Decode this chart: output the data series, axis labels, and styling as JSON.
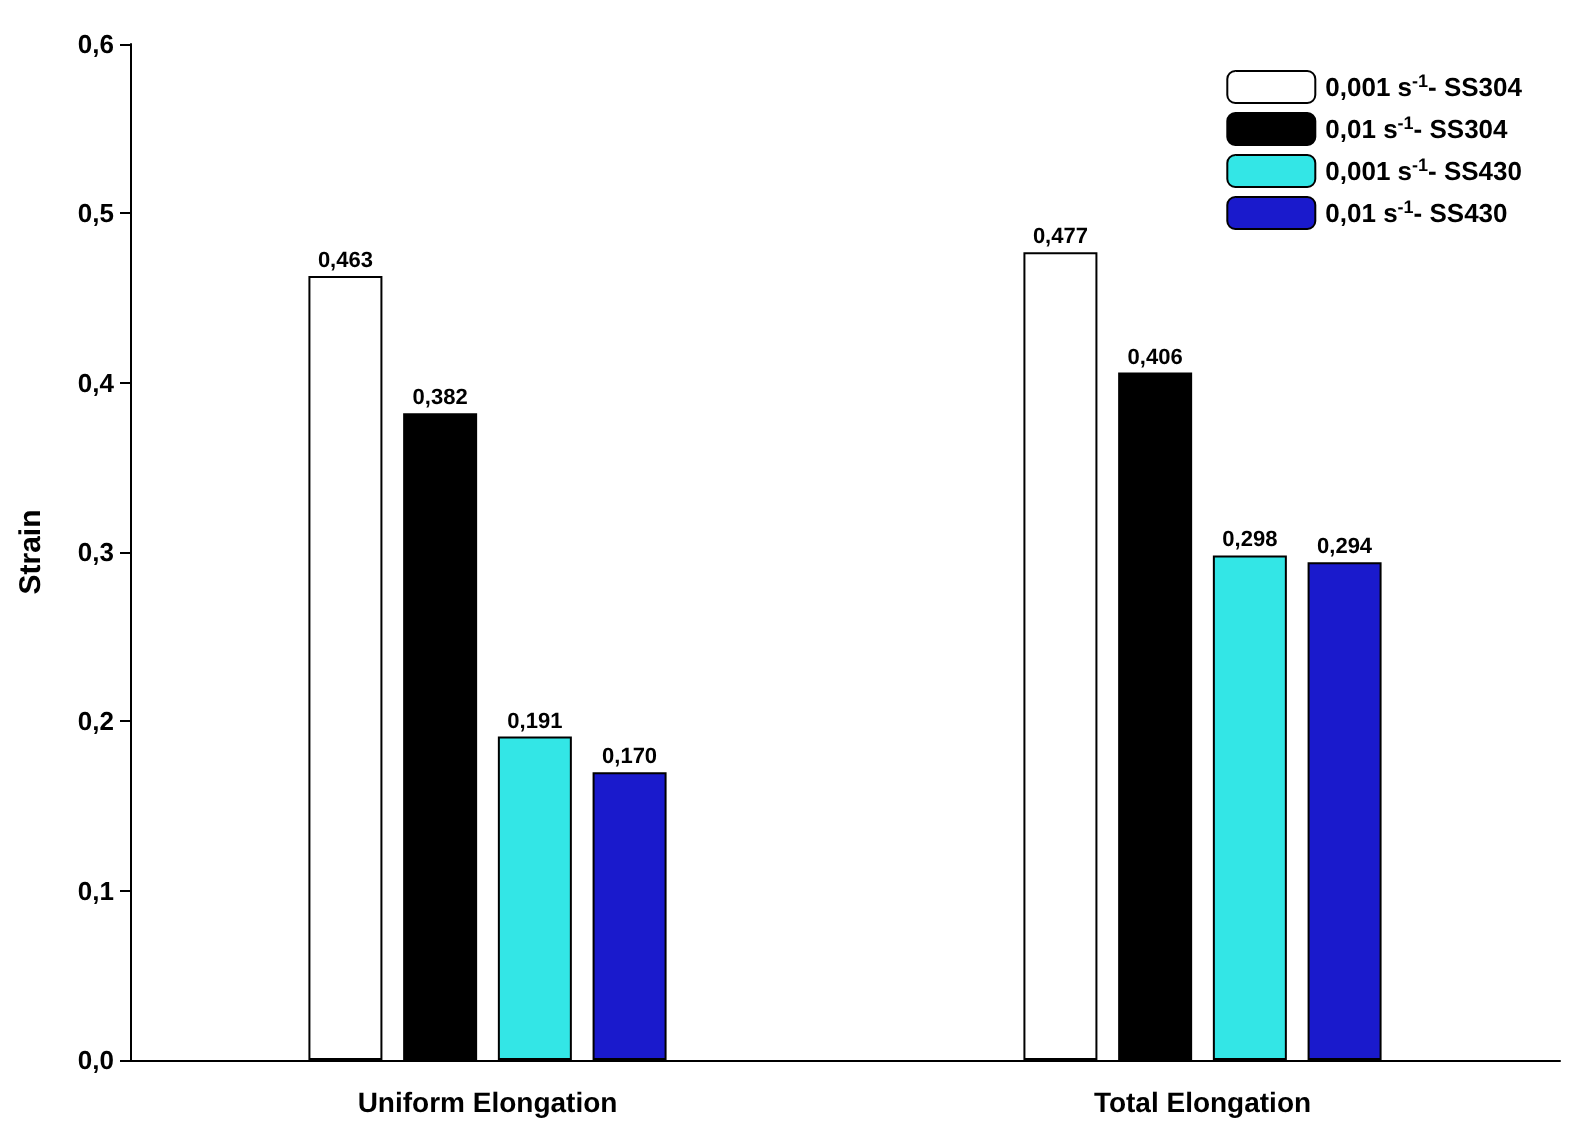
{
  "chart_data": {
    "type": "bar",
    "ylabel": "Strain",
    "categories": [
      "Uniform Elongation",
      "Total Elongation"
    ],
    "series": [
      {
        "name": "0,001 s$^{-1}$- SS304",
        "color": "#ffffff",
        "values": [
          0.463,
          0.477
        ],
        "value_labels": [
          "0,463",
          "0,477"
        ]
      },
      {
        "name": "0,01 s$^{-1}$- SS304",
        "color": "#000000",
        "values": [
          0.382,
          0.406
        ],
        "value_labels": [
          "0,382",
          "0,406"
        ]
      },
      {
        "name": "0,001 s$^{-1}$- SS430",
        "color": "#33e6e6",
        "values": [
          0.191,
          0.298
        ],
        "value_labels": [
          "0,191",
          "0,298"
        ]
      },
      {
        "name": "0,01 s$^{-1}$- SS430",
        "color": "#1a1acc",
        "values": [
          0.17,
          0.294
        ],
        "value_labels": [
          "0,170",
          "0,294"
        ]
      }
    ],
    "ylim": [
      0,
      0.6
    ],
    "yticks": [
      {
        "value": 0,
        "label": "0,0"
      },
      {
        "value": 0.1,
        "label": "0,1"
      },
      {
        "value": 0.2,
        "label": "0,2"
      },
      {
        "value": 0.3,
        "label": "0,3"
      },
      {
        "value": 0.4,
        "label": "0,4"
      },
      {
        "value": 0.5,
        "label": "0,5"
      },
      {
        "value": 0.6,
        "label": "0,6"
      }
    ],
    "grid": false,
    "legend": "top right"
  }
}
